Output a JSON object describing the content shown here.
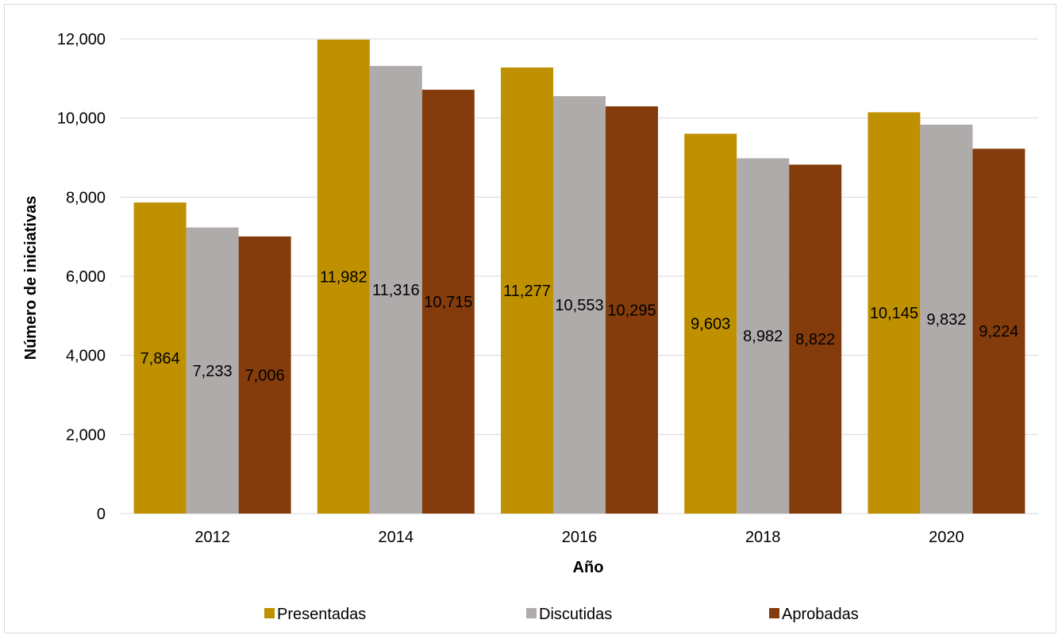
{
  "chart_data": {
    "type": "bar",
    "categories": [
      "2012",
      "2014",
      "2016",
      "2018",
      "2020"
    ],
    "series": [
      {
        "name": "Presentadas",
        "color": "#bf9000",
        "values": [
          7864,
          11982,
          11277,
          9603,
          10145
        ],
        "labels": [
          "7,864",
          "11,982",
          "11,277",
          "9,603",
          "10,145"
        ]
      },
      {
        "name": "Discutidas",
        "color": "#afabab",
        "values": [
          7233,
          11316,
          10553,
          8982,
          9832
        ],
        "labels": [
          "7,233",
          "11,316",
          "10,553",
          "8,982",
          "9,832"
        ]
      },
      {
        "name": "Aprobadas",
        "color": "#843c0c",
        "values": [
          7006,
          10715,
          10295,
          8822,
          9224
        ],
        "labels": [
          "7,006",
          "10,715",
          "10,295",
          "8,822",
          "9,224"
        ]
      }
    ],
    "xlabel": "Año",
    "ylabel": "Número de iniciativas",
    "ylim": [
      0,
      12000
    ],
    "yticks": [
      0,
      2000,
      4000,
      6000,
      8000,
      10000,
      12000
    ],
    "ytick_labels": [
      "0",
      "2,000",
      "4,000",
      "6,000",
      "8,000",
      "10,000",
      "12,000"
    ],
    "grid": true,
    "gridline_color": "#d9d9d9",
    "legend_position": "bottom"
  }
}
